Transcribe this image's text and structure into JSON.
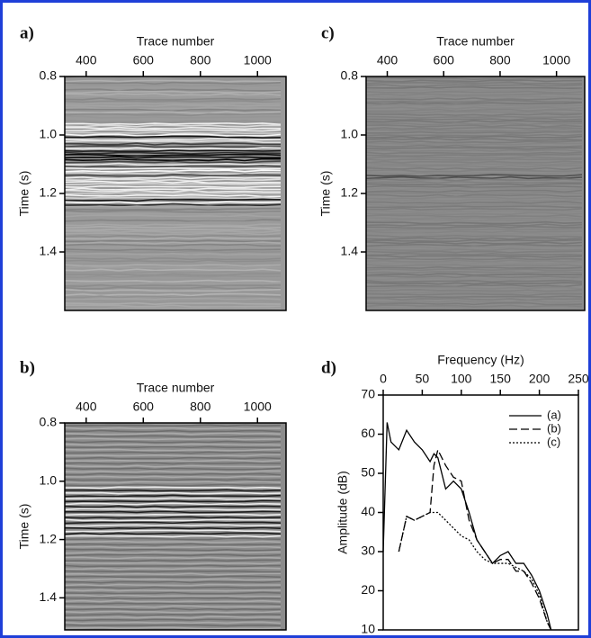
{
  "chart_data": [
    {
      "type": "seismic",
      "panel_label": "a)",
      "xlabel": "Trace number",
      "ylabel": "Time (s)",
      "xlim": [
        325,
        1100
      ],
      "xticks": [
        400,
        600,
        800,
        1000
      ],
      "ylim": [
        0.8,
        1.6
      ],
      "yticks": [
        0.8,
        {
          "value": 1,
          "label": "1.0"
        },
        1.2,
        1.4
      ]
    },
    {
      "type": "seismic",
      "panel_label": "b)",
      "xlabel": "Trace number",
      "ylabel": "Time (s)",
      "xlim": [
        325,
        1100
      ],
      "xticks": [
        400,
        600,
        800,
        1000
      ],
      "ylim": [
        0.8,
        1.51
      ],
      "yticks": [
        0.8,
        {
          "value": 1,
          "label": "1.0"
        },
        1.2,
        1.4
      ]
    },
    {
      "type": "seismic",
      "panel_label": "c)",
      "xlabel": "Trace number",
      "ylabel": "Time (s)",
      "xlim": [
        325,
        1100
      ],
      "xticks": [
        400,
        600,
        800,
        1000
      ],
      "ylim": [
        0.8,
        1.6
      ],
      "yticks": [
        0.8,
        {
          "value": 1,
          "label": "1.0"
        },
        1.2,
        1.4
      ]
    },
    {
      "type": "line",
      "panel_label": "d)",
      "xlabel": "Frequency (Hz)",
      "ylabel": "Amplitude (dB)",
      "xlim": [
        0,
        250
      ],
      "xticks": [
        0,
        50,
        100,
        150,
        200,
        250
      ],
      "ylim": [
        10,
        70
      ],
      "yticks": [
        10,
        20,
        30,
        40,
        50,
        60,
        70
      ],
      "x": [
        0,
        5,
        10,
        20,
        30,
        40,
        50,
        60,
        65,
        70,
        80,
        90,
        100,
        110,
        120,
        130,
        140,
        150,
        160,
        170,
        180,
        190,
        200,
        210,
        215
      ],
      "series": [
        {
          "name": "(a)",
          "color": "#000000",
          "dash": "solid",
          "values": [
            30,
            63,
            58,
            56,
            61,
            58,
            56,
            53,
            55,
            54,
            46,
            48,
            46,
            40,
            33,
            30,
            27,
            29,
            30,
            27,
            27,
            24,
            20,
            14,
            10
          ]
        },
        {
          "name": "(b)",
          "color": "#000000",
          "dash": "dashed",
          "values": [
            null,
            null,
            null,
            30,
            39,
            38,
            39,
            40,
            52,
            56,
            52,
            49,
            48,
            38,
            33,
            30,
            27,
            28,
            28,
            25,
            25,
            22,
            18,
            12,
            10
          ]
        },
        {
          "name": "(c)",
          "color": "#000000",
          "dash": "dotted",
          "values": [
            null,
            null,
            null,
            30,
            39,
            38,
            39,
            40,
            40,
            40,
            38,
            36,
            34,
            33,
            30,
            28,
            27,
            27,
            27,
            26,
            25,
            23,
            19,
            12,
            10
          ]
        }
      ]
    }
  ]
}
